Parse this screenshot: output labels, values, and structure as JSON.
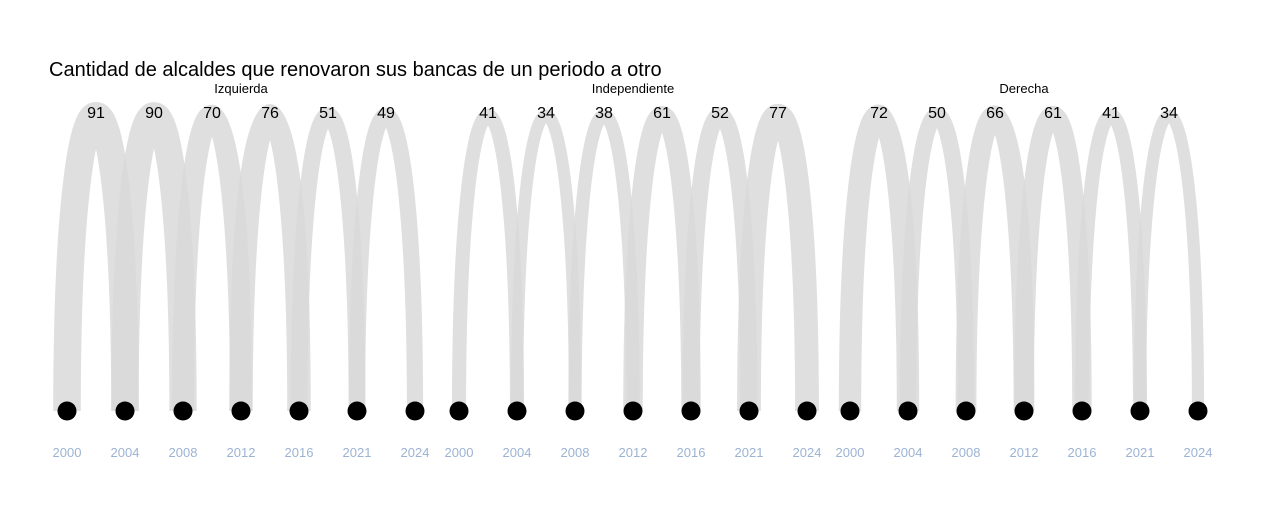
{
  "colors": {
    "arc": "#d9d9d9",
    "node": "#000000",
    "tick": "#9cb3d4",
    "text": "#000000"
  },
  "chart_data": {
    "type": "arc",
    "title": "Cantidad de alcaldes que renovaron sus bancas de un periodo a otro",
    "periods": [
      "2000",
      "2004",
      "2008",
      "2012",
      "2016",
      "2021",
      "2024"
    ],
    "panels": [
      {
        "name": "Izquierda",
        "values": [
          91,
          90,
          70,
          76,
          51,
          49
        ]
      },
      {
        "name": "Independiente",
        "values": [
          41,
          34,
          38,
          61,
          52,
          77
        ]
      },
      {
        "name": "Derecha",
        "values": [
          72,
          50,
          66,
          61,
          41,
          34
        ]
      }
    ]
  }
}
